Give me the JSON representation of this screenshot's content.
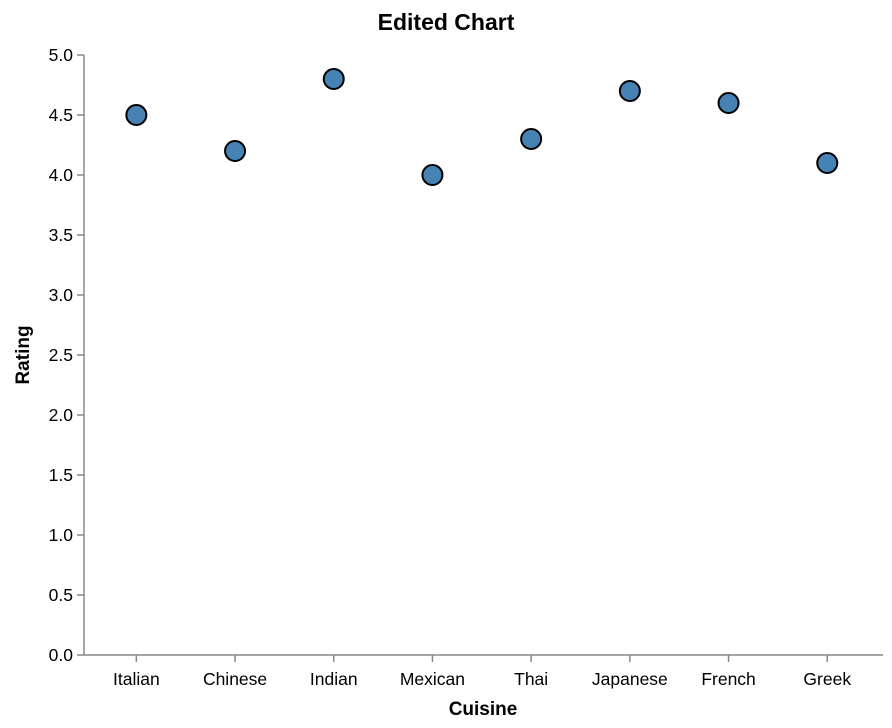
{
  "chart_data": {
    "type": "scatter",
    "title": "Edited Chart",
    "xlabel": "Cuisine",
    "ylabel": "Rating",
    "categories": [
      "Italian",
      "Chinese",
      "Indian",
      "Mexican",
      "Thai",
      "Japanese",
      "French",
      "Greek"
    ],
    "values": [
      4.5,
      4.2,
      4.8,
      4.0,
      4.3,
      4.7,
      4.6,
      4.1
    ],
    "ylim": [
      0,
      5
    ],
    "yticks": [
      "0.0",
      "0.5",
      "1.0",
      "1.5",
      "2.0",
      "2.5",
      "3.0",
      "3.5",
      "4.0",
      "4.5",
      "5.0"
    ],
    "grid": false,
    "point_color": "#4682b4",
    "point_stroke": "#000000"
  }
}
